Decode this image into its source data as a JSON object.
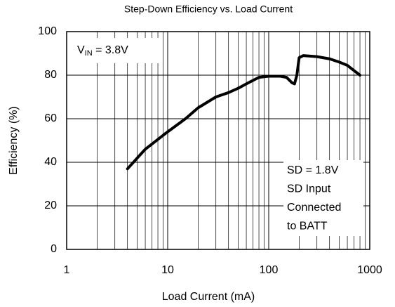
{
  "chart_data": {
    "type": "line",
    "title": "Step-Down Efficiency vs. Load Current",
    "xlabel": "Load Current (mA)",
    "ylabel": "Efficiency (%)",
    "xscale": "log",
    "xlim": [
      1,
      1000
    ],
    "xticks": [
      1,
      10,
      100,
      1000
    ],
    "xminor": [
      2,
      3,
      4,
      5,
      6,
      7,
      8,
      9,
      20,
      30,
      40,
      50,
      60,
      70,
      80,
      90,
      200,
      300,
      400,
      500,
      600,
      700,
      800,
      900
    ],
    "ylim": [
      0,
      100
    ],
    "yticks": [
      0,
      20,
      40,
      60,
      80,
      100
    ],
    "grid": true,
    "series": [
      {
        "color": "#000000",
        "x": [
          4,
          6,
          10,
          15,
          20,
          30,
          40,
          50,
          60,
          80,
          100,
          130,
          150,
          170,
          180,
          190,
          200,
          220,
          300,
          400,
          500,
          600,
          800
        ],
        "values": [
          37,
          46,
          54,
          60,
          65,
          70,
          72,
          74,
          76,
          79,
          79.5,
          79.5,
          79,
          76.5,
          76,
          80,
          88,
          89,
          88.5,
          87.5,
          86,
          84.5,
          80
        ]
      }
    ],
    "vin_label": {
      "main": "V",
      "sub": "IN",
      "suffix": " = 3.8V"
    },
    "note_lines": [
      "SD = 1.8V",
      "SD Input",
      "Connected",
      "to BATT"
    ]
  }
}
